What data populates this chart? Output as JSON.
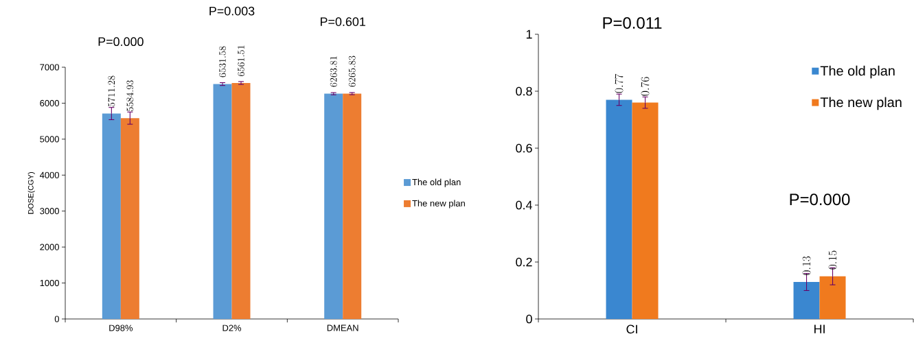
{
  "chart_data": [
    {
      "type": "bar",
      "ylabel": "DOSE(CGY)",
      "categories": [
        "D98%",
        "D2%",
        "DMEAN"
      ],
      "series": [
        {
          "name": "The old plan",
          "color": "#5b9bd5",
          "values": [
            5711.28,
            6531.58,
            6263.81
          ],
          "errors": [
            170,
            40,
            30
          ]
        },
        {
          "name": "The new plan",
          "color": "#ed7d31",
          "values": [
            5584.93,
            6561.51,
            6265.83
          ],
          "errors": [
            170,
            40,
            30
          ]
        }
      ],
      "ylim": [
        0,
        7000
      ],
      "yticks": [
        0,
        1000,
        2000,
        3000,
        4000,
        5000,
        6000,
        7000
      ],
      "data_labels": true,
      "legend": "right",
      "annotations": [
        "P=0.000",
        "P=0.003",
        "P=0.601"
      ]
    },
    {
      "type": "bar",
      "categories": [
        "CI",
        "HI"
      ],
      "series": [
        {
          "name": "The old plan",
          "color": "#3a87d0",
          "values": [
            0.77,
            0.13
          ],
          "errors": [
            0.02,
            0.03
          ]
        },
        {
          "name": "The new plan",
          "color": "#f07a1e",
          "values": [
            0.76,
            0.15
          ],
          "errors": [
            0.02,
            0.03
          ]
        }
      ],
      "ylim": [
        0,
        1
      ],
      "yticks": [
        0,
        0.2,
        0.4,
        0.6,
        0.8,
        1
      ],
      "data_labels": true,
      "legend": "top right",
      "annotations": [
        "P=0.011",
        "P=0.000"
      ]
    }
  ]
}
